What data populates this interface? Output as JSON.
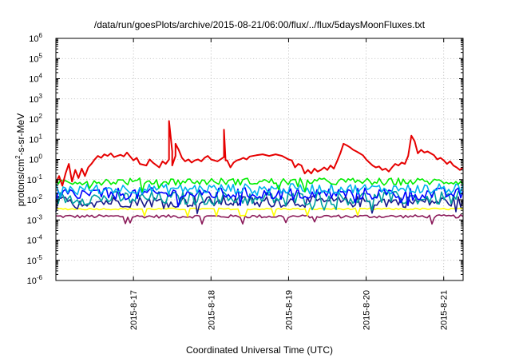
{
  "chart_data": {
    "type": "line",
    "title": "/data/run/goesPlots/archive/2015-08-21/06:00/flux/../flux/5daysMoonFluxes.txt",
    "xlabel": "Coordinated Universal Time (UTC)",
    "ylabel": {
      "base": "protons/cm",
      "sup": "2",
      "rest": "-s-sr-MeV"
    },
    "x_range": [
      "2015-08-16 00:00",
      "2015-08-21 06:00"
    ],
    "x_ticks": [
      "2015-8-17",
      "2015-8-18",
      "2015-8-19",
      "2015-8-20",
      "2015-8-21"
    ],
    "y_scale": "log",
    "y_range": [
      1e-06,
      1000000.0
    ],
    "y_ticks": [
      {
        "base": "10",
        "exp": "-6"
      },
      {
        "base": "10",
        "exp": "-5"
      },
      {
        "base": "10",
        "exp": "-4"
      },
      {
        "base": "10",
        "exp": "-3"
      },
      {
        "base": "10",
        "exp": "-2"
      },
      {
        "base": "10",
        "exp": "-1"
      },
      {
        "base": "10",
        "exp": "0"
      },
      {
        "base": "10",
        "exp": "1"
      },
      {
        "base": "10",
        "exp": "2"
      },
      {
        "base": "10",
        "exp": "3"
      },
      {
        "base": "10",
        "exp": "4"
      },
      {
        "base": "10",
        "exp": "5"
      },
      {
        "base": "10",
        "exp": "6"
      }
    ],
    "grid": true,
    "series_colors": [
      "#e60000",
      "#00ee00",
      "#00b2ee",
      "#0000ff",
      "#00a0a0",
      "#1a1a8a",
      "#ffff00",
      "#8b1a5a"
    ],
    "series": [
      {
        "color": "#e60000",
        "points": [
          [
            "2015-08-16 00:00",
            0.07
          ],
          [
            "2015-08-16 01:00",
            0.15
          ],
          [
            "2015-08-16 02:00",
            0.05
          ],
          [
            "2015-08-16 03:00",
            0.2
          ],
          [
            "2015-08-16 04:00",
            0.6
          ],
          [
            "2015-08-16 05:00",
            0.08
          ],
          [
            "2015-08-16 06:00",
            0.3
          ],
          [
            "2015-08-16 07:00",
            0.12
          ],
          [
            "2015-08-16 08:00",
            0.35
          ],
          [
            "2015-08-16 09:00",
            0.15
          ],
          [
            "2015-08-16 10:00",
            0.4
          ],
          [
            "2015-08-16 11:00",
            0.6
          ],
          [
            "2015-08-16 12:00",
            1.0
          ],
          [
            "2015-08-16 13:00",
            1.5
          ],
          [
            "2015-08-16 14:00",
            1.2
          ],
          [
            "2015-08-16 15:00",
            1.8
          ],
          [
            "2015-08-16 16:00",
            1.5
          ],
          [
            "2015-08-16 17:00",
            2.0
          ],
          [
            "2015-08-16 18:00",
            1.3
          ],
          [
            "2015-08-16 20:00",
            1.7
          ],
          [
            "2015-08-16 21:00",
            1.4
          ],
          [
            "2015-08-16 22:00",
            2.2
          ],
          [
            "2015-08-17 00:00",
            0.9
          ],
          [
            "2015-08-17 01:00",
            1.2
          ],
          [
            "2015-08-17 02:00",
            0.6
          ],
          [
            "2015-08-17 04:00",
            0.5
          ],
          [
            "2015-08-17 05:00",
            1.0
          ],
          [
            "2015-08-17 06:00",
            0.7
          ],
          [
            "2015-08-17 08:00",
            0.4
          ],
          [
            "2015-08-17 09:00",
            0.8
          ],
          [
            "2015-08-17 10:00",
            0.6
          ],
          [
            "2015-08-17 11:00",
            1.0
          ],
          [
            "2015-08-17 12:00",
            2.5
          ],
          [
            "2015-08-17 13:00",
            1.5
          ],
          [
            "2015-08-17 14:00",
            3.0
          ],
          [
            "2015-08-17 15:00",
            1.2
          ],
          [
            "2015-08-17 16:00",
            0.8
          ],
          [
            "2015-08-17 17:00",
            1.0
          ],
          [
            "2015-08-17 18:00",
            0.7
          ],
          [
            "2015-08-17 19:00",
            0.9
          ],
          [
            "2015-08-17 20:00",
            1.0
          ],
          [
            "2015-08-17 21:00",
            0.8
          ],
          [
            "2015-08-17 22:00",
            1.2
          ],
          [
            "2015-08-17 23:00",
            1.5
          ],
          [
            "2015-08-18 00:00",
            1.0
          ],
          [
            "2015-08-18 02:00",
            0.8
          ],
          [
            "2015-08-18 04:00",
            1.3
          ],
          [
            "2015-08-18 05:00",
            0.9
          ],
          [
            "2015-08-18 06:00",
            0.4
          ],
          [
            "2015-08-18 07:00",
            0.7
          ],
          [
            "2015-08-18 08:00",
            0.9
          ],
          [
            "2015-08-18 09:00",
            1.0
          ],
          [
            "2015-08-18 10:00",
            1.2
          ],
          [
            "2015-08-18 11:00",
            1.0
          ],
          [
            "2015-08-18 12:00",
            1.4
          ],
          [
            "2015-08-18 14:00",
            1.6
          ],
          [
            "2015-08-18 16:00",
            1.8
          ],
          [
            "2015-08-18 18:00",
            1.5
          ],
          [
            "2015-08-18 20:00",
            1.8
          ],
          [
            "2015-08-18 22:00",
            1.5
          ],
          [
            "2015-08-19 00:00",
            1.0
          ],
          [
            "2015-08-19 01:00",
            0.9
          ],
          [
            "2015-08-19 02:00",
            0.4
          ],
          [
            "2015-08-19 03:00",
            0.6
          ],
          [
            "2015-08-19 04:00",
            0.5
          ],
          [
            "2015-08-19 05:00",
            0.2
          ],
          [
            "2015-08-19 06:00",
            0.3
          ],
          [
            "2015-08-19 07:00",
            0.2
          ],
          [
            "2015-08-19 08:00",
            0.35
          ],
          [
            "2015-08-19 09:00",
            0.25
          ],
          [
            "2015-08-19 10:00",
            0.3
          ],
          [
            "2015-08-19 11:00",
            0.4
          ],
          [
            "2015-08-19 12:00",
            0.3
          ],
          [
            "2015-08-19 13:00",
            0.5
          ],
          [
            "2015-08-19 14:00",
            0.35
          ],
          [
            "2015-08-19 15:00",
            0.8
          ],
          [
            "2015-08-19 16:00",
            2.0
          ],
          [
            "2015-08-19 17:00",
            6.0
          ],
          [
            "2015-08-19 18:00",
            5.0
          ],
          [
            "2015-08-19 19:00",
            4.0
          ],
          [
            "2015-08-19 20:00",
            3.0
          ],
          [
            "2015-08-19 21:00",
            2.5
          ],
          [
            "2015-08-19 22:00",
            2.0
          ],
          [
            "2015-08-19 23:00",
            1.6
          ],
          [
            "2015-08-20 00:00",
            1.0
          ],
          [
            "2015-08-20 01:00",
            0.7
          ],
          [
            "2015-08-20 02:00",
            0.5
          ],
          [
            "2015-08-20 03:00",
            0.4
          ],
          [
            "2015-08-20 04:00",
            0.45
          ],
          [
            "2015-08-20 05:00",
            0.3
          ],
          [
            "2015-08-20 06:00",
            0.35
          ],
          [
            "2015-08-20 07:00",
            0.25
          ],
          [
            "2015-08-20 08:00",
            0.4
          ],
          [
            "2015-08-20 09:00",
            0.6
          ],
          [
            "2015-08-20 10:00",
            0.5
          ],
          [
            "2015-08-20 11:00",
            0.7
          ],
          [
            "2015-08-20 12:00",
            0.6
          ],
          [
            "2015-08-20 13:00",
            1.5
          ],
          [
            "2015-08-20 14:00",
            15.0
          ],
          [
            "2015-08-20 15:00",
            8.0
          ],
          [
            "2015-08-20 16:00",
            2.0
          ],
          [
            "2015-08-20 17:00",
            3.0
          ],
          [
            "2015-08-20 18:00",
            2.2
          ],
          [
            "2015-08-20 19:00",
            2.5
          ],
          [
            "2015-08-20 20:00",
            2.0
          ],
          [
            "2015-08-20 21:00",
            1.6
          ],
          [
            "2015-08-20 22:00",
            1.0
          ],
          [
            "2015-08-20 23:00",
            1.2
          ],
          [
            "2015-08-21 00:00",
            0.9
          ],
          [
            "2015-08-21 01:00",
            0.6
          ],
          [
            "2015-08-21 02:00",
            0.8
          ],
          [
            "2015-08-21 03:00",
            0.5
          ],
          [
            "2015-08-21 04:00",
            0.4
          ],
          [
            "2015-08-21 05:00",
            0.3
          ],
          [
            "2015-08-21 06:00",
            0.4
          ]
        ],
        "spikes": [
          [
            "2015-08-17 11:00",
            80
          ],
          [
            "2015-08-17 12:00",
            0.5
          ],
          [
            "2015-08-17 13:00",
            6.0
          ],
          [
            "2015-08-18 04:00",
            30
          ],
          [
            "2015-08-18 04:30",
            0.9
          ]
        ]
      },
      {
        "color": "#00ee00",
        "level": 0.08,
        "spread": 1.5
      },
      {
        "color": "#00b2ee",
        "level": 0.035,
        "spread": 1.8
      },
      {
        "color": "#0000ff",
        "level": 0.02,
        "spread": 2.0
      },
      {
        "color": "#00a0a0",
        "level": 0.012,
        "spread": 2.2
      },
      {
        "color": "#1a1a8a",
        "level": 0.008,
        "spread": 1.9
      },
      {
        "color": "#ffff00",
        "level": 0.0035,
        "spread": 1.1
      },
      {
        "color": "#8b1a5a",
        "level": 0.0015,
        "spread": 1.2
      }
    ]
  }
}
